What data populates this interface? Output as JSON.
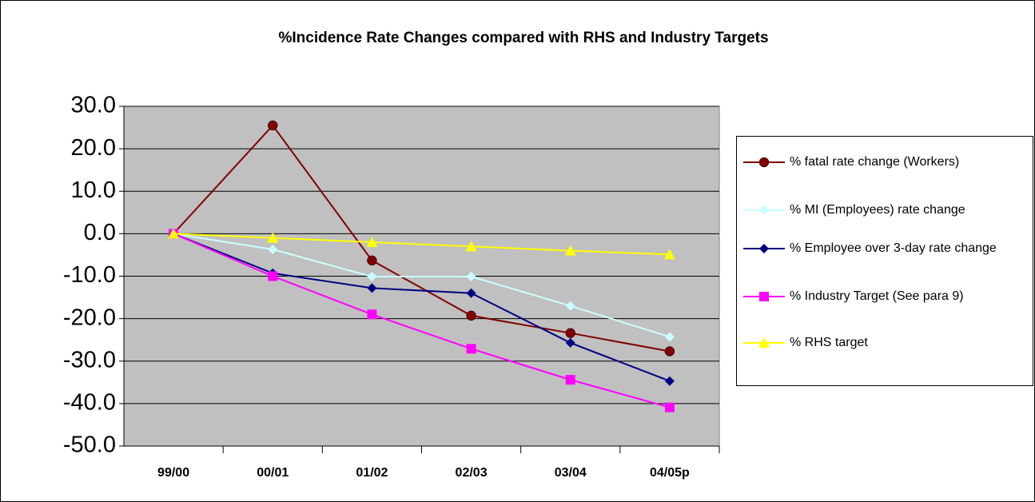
{
  "chart_data": {
    "type": "line",
    "title": "%Incidence Rate Changes compared with RHS and Industry Targets",
    "categories": [
      "99/00",
      "00/01",
      "01/02",
      "02/03",
      "03/04",
      "04/05p"
    ],
    "series": [
      {
        "name": "% fatal rate change (Workers)",
        "color": "#800000",
        "marker": "circle",
        "values": [
          0,
          25.5,
          -6.3,
          -19.3,
          -23.4,
          -27.7
        ]
      },
      {
        "name": "% MI (Employees) rate change",
        "color": "#ccffff",
        "marker": "diamond",
        "values": [
          0,
          -3.7,
          -10.1,
          -10.1,
          -17.0,
          -24.3
        ]
      },
      {
        "name": "% Employee over 3-day rate change",
        "color": "#000080",
        "marker": "diamond",
        "values": [
          0,
          -9.3,
          -12.8,
          -14.0,
          -25.7,
          -34.7
        ]
      },
      {
        "name": "% Industry Target (See para 9)",
        "color": "#ff00ff",
        "marker": "square",
        "values": [
          0,
          -10.0,
          -19.0,
          -27.1,
          -34.4,
          -40.9
        ]
      },
      {
        "name": "% RHS target",
        "color": "#ffff00",
        "marker": "triangle",
        "values": [
          0,
          -1.0,
          -2.0,
          -3.0,
          -4.0,
          -4.9
        ]
      }
    ],
    "ylim": [
      -50,
      30
    ],
    "yticks": [
      {
        "value": -50,
        "label": "-50.0"
      },
      {
        "value": -40,
        "label": "-40.0"
      },
      {
        "value": -30,
        "label": "-30.0"
      },
      {
        "value": -20,
        "label": "-20.0"
      },
      {
        "value": -10,
        "label": "-10.0"
      },
      {
        "value": 0,
        "label": "0.0"
      },
      {
        "value": 10,
        "label": "10.0"
      },
      {
        "value": 20,
        "label": "20.0"
      },
      {
        "value": 30,
        "label": "30.0"
      }
    ],
    "grid": true,
    "legend": "right",
    "plot_background": "#c0c0c0"
  }
}
